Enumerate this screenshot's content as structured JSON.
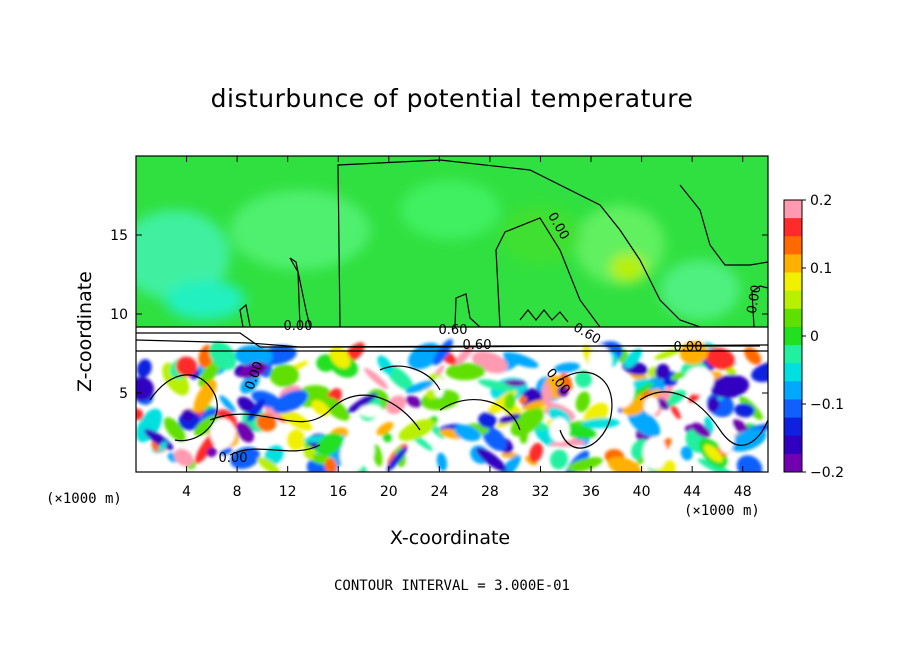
{
  "chart_data": {
    "type": "heatmap",
    "title": "disturbunce of potential temperature",
    "xlabel": "X-coordinate",
    "ylabel": "Z-coordinate",
    "x_unit": "(×1000 m)",
    "x_unit_right": "(×1000 m)",
    "xlim": [
      0,
      50
    ],
    "ylim": [
      0,
      20
    ],
    "x_ticks": [
      4,
      8,
      12,
      16,
      20,
      24,
      28,
      32,
      36,
      40,
      44,
      48
    ],
    "y_ticks": [
      5,
      10,
      15
    ],
    "colorbar": {
      "range": [
        -0.2,
        0.2
      ],
      "tick_labels": [
        "0.2",
        "0.1",
        "0",
        "−0.1",
        "−0.2"
      ],
      "tick_values": [
        0.2,
        0.1,
        0,
        -0.1,
        -0.2
      ],
      "colors": [
        "#ff9ab0",
        "#ff2a2a",
        "#ff6a00",
        "#ffb000",
        "#f0f000",
        "#b8f000",
        "#60e000",
        "#20e020",
        "#20f0a0",
        "#00e0e0",
        "#00a8ff",
        "#1060ff",
        "#1020e0",
        "#3000c0",
        "#7000b0"
      ]
    },
    "contour_labels": [
      "0.00",
      "0.60",
      "0.00",
      "0.60",
      "0.00",
      "0.00",
      "0.00",
      "0.00",
      "0.60",
      "0.00"
    ],
    "contour_interval_note": "CONTOUR INTERVAL = 3.000E-01",
    "background_value": 0.0,
    "inversion_layer_z": [
      7.6,
      9.2
    ]
  }
}
